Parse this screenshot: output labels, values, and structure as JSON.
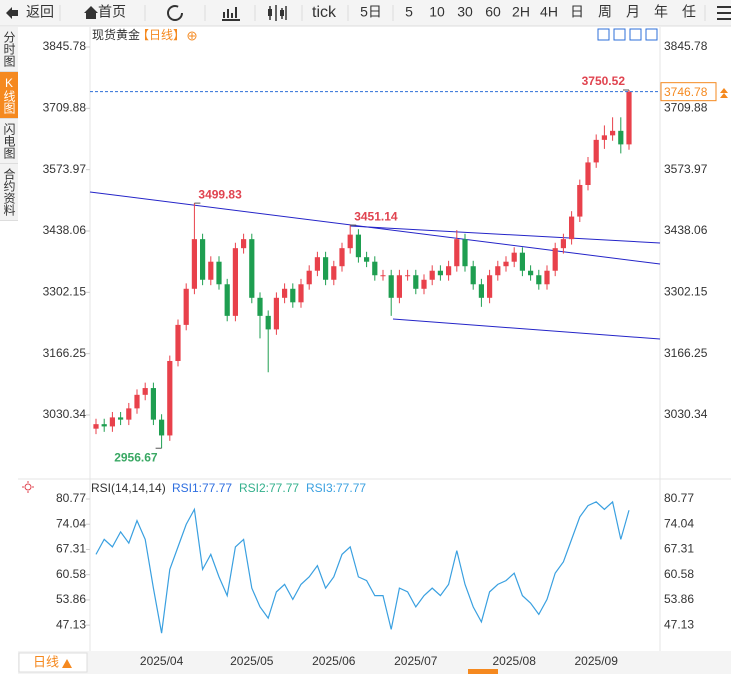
{
  "toolbar": {
    "items": [
      "返回",
      "首页",
      "tick",
      "5日",
      "5",
      "10",
      "30",
      "60",
      "2H",
      "4H",
      "日",
      "周",
      "月",
      "年",
      "任"
    ]
  },
  "sidebar": {
    "tabs": [
      "分时图",
      "K线图",
      "闪电图",
      "合约资料"
    ]
  },
  "bottom_bar": {
    "period": "日线"
  },
  "chart_data": {
    "type": "candlestick",
    "symbol": "现货黄金",
    "period": "【日线】",
    "up_color": "#e8414b",
    "down_color": "#1e9e50",
    "last_line_color": "#2e6fd8",
    "label_up_color": "#e0434f",
    "label_down_color": "#3aa864",
    "categories": [
      null,
      null,
      null,
      null,
      null,
      null,
      null,
      null,
      "2025/04",
      null,
      null,
      null,
      null,
      null,
      null,
      null,
      null,
      null,
      null,
      "2025/05",
      null,
      null,
      null,
      null,
      null,
      null,
      null,
      null,
      null,
      "2025/06",
      null,
      null,
      null,
      null,
      null,
      null,
      null,
      null,
      null,
      "2025/07",
      null,
      null,
      null,
      null,
      null,
      null,
      null,
      null,
      null,
      null,
      null,
      "2025/08",
      null,
      null,
      null,
      null,
      null,
      null,
      null,
      null,
      null,
      "2025/09",
      null,
      null,
      null,
      null
    ],
    "open": [
      3000,
      3010,
      3005,
      3025,
      3020,
      3045,
      3075,
      3090,
      3020,
      2985,
      3150,
      3230,
      3310,
      3420,
      3330,
      3370,
      3320,
      3250,
      3400,
      3420,
      3290,
      3250,
      3220,
      3290,
      3310,
      3280,
      3320,
      3350,
      3380,
      3330,
      3360,
      3400,
      3430,
      3380,
      3370,
      3340,
      3340,
      3290,
      3340,
      3340,
      3310,
      3330,
      3350,
      3340,
      3360,
      3420,
      3360,
      3320,
      3290,
      3340,
      3360,
      3370,
      3390,
      3350,
      3340,
      3320,
      3350,
      3400,
      3420,
      3470,
      3540,
      3590,
      3640,
      3650,
      3660,
      3630
    ],
    "high": [
      3022,
      3022,
      3037,
      3037,
      3057,
      3087,
      3102,
      3102,
      3032,
      3162,
      3242,
      3322,
      3499.83,
      3432,
      3382,
      3382,
      3332,
      3412,
      3432,
      3432,
      3302,
      3262,
      3302,
      3322,
      3322,
      3332,
      3362,
      3392,
      3392,
      3372,
      3412,
      3451.14,
      3442,
      3392,
      3382,
      3352,
      3352,
      3352,
      3352,
      3352,
      3342,
      3362,
      3362,
      3372,
      3440,
      3432,
      3372,
      3332,
      3352,
      3372,
      3382,
      3402,
      3402,
      3362,
      3352,
      3362,
      3412,
      3432,
      3482,
      3552,
      3602,
      3652,
      3672,
      3690,
      3690,
      3750.52
    ],
    "low": [
      2988,
      2993,
      2993,
      3008,
      3008,
      3033,
      3063,
      3008,
      2956.67,
      2973,
      3138,
      3218,
      3298,
      3318,
      3318,
      3308,
      3238,
      3238,
      3388,
      3278,
      3200,
      3125,
      3208,
      3278,
      3268,
      3268,
      3308,
      3338,
      3318,
      3318,
      3348,
      3388,
      3368,
      3358,
      3328,
      3328,
      3250,
      3278,
      3328,
      3298,
      3298,
      3318,
      3328,
      3328,
      3348,
      3348,
      3308,
      3270,
      3278,
      3328,
      3348,
      3358,
      3338,
      3328,
      3308,
      3308,
      3338,
      3388,
      3408,
      3458,
      3528,
      3578,
      3620,
      3638,
      3610,
      3618
    ],
    "close": [
      3010,
      3005,
      3025,
      3020,
      3045,
      3075,
      3090,
      3020,
      2985,
      3150,
      3230,
      3310,
      3420,
      3330,
      3370,
      3320,
      3250,
      3400,
      3420,
      3290,
      3250,
      3220,
      3290,
      3310,
      3280,
      3320,
      3350,
      3380,
      3330,
      3360,
      3400,
      3430,
      3380,
      3370,
      3340,
      3340,
      3290,
      3340,
      3340,
      3310,
      3330,
      3350,
      3340,
      3360,
      3420,
      3360,
      3320,
      3290,
      3340,
      3360,
      3370,
      3390,
      3350,
      3340,
      3320,
      3350,
      3400,
      3420,
      3470,
      3540,
      3590,
      3640,
      3650,
      3660,
      3630,
      3746.78
    ],
    "ylim": [
      2890.7,
      3890.1
    ],
    "yticks": [
      3030.34,
      3166.25,
      3302.15,
      3438.06,
      3573.97,
      3709.88,
      3845.78
    ],
    "rsi": {
      "title": "RSI(14,14,14)",
      "legend": [
        "RSI1:77.77",
        "RSI2:77.77",
        "RSI3:77.77"
      ],
      "legend_colors": [
        "#2d6ee0",
        "#33b08c",
        "#3aa0e0"
      ],
      "color": "#3aa0e0",
      "values": [
        66,
        70,
        68,
        72,
        69,
        75,
        70,
        57,
        45,
        62,
        68,
        74,
        78,
        62,
        66,
        60,
        55,
        68,
        70,
        57,
        52,
        49,
        56,
        58,
        54,
        58,
        60,
        63,
        57,
        60,
        66,
        68,
        60,
        59,
        55,
        55,
        46,
        57,
        56,
        52,
        55,
        57,
        55,
        58,
        67,
        58,
        52,
        48,
        56,
        58,
        59,
        61,
        55,
        53,
        50,
        54,
        61,
        64,
        70,
        76,
        79,
        80,
        78,
        80,
        70,
        77.77
      ],
      "ylim": [
        40.5,
        84.5
      ],
      "yticks": [
        47.13,
        53.86,
        60.58,
        67.31,
        74.04,
        80.77
      ]
    }
  }
}
